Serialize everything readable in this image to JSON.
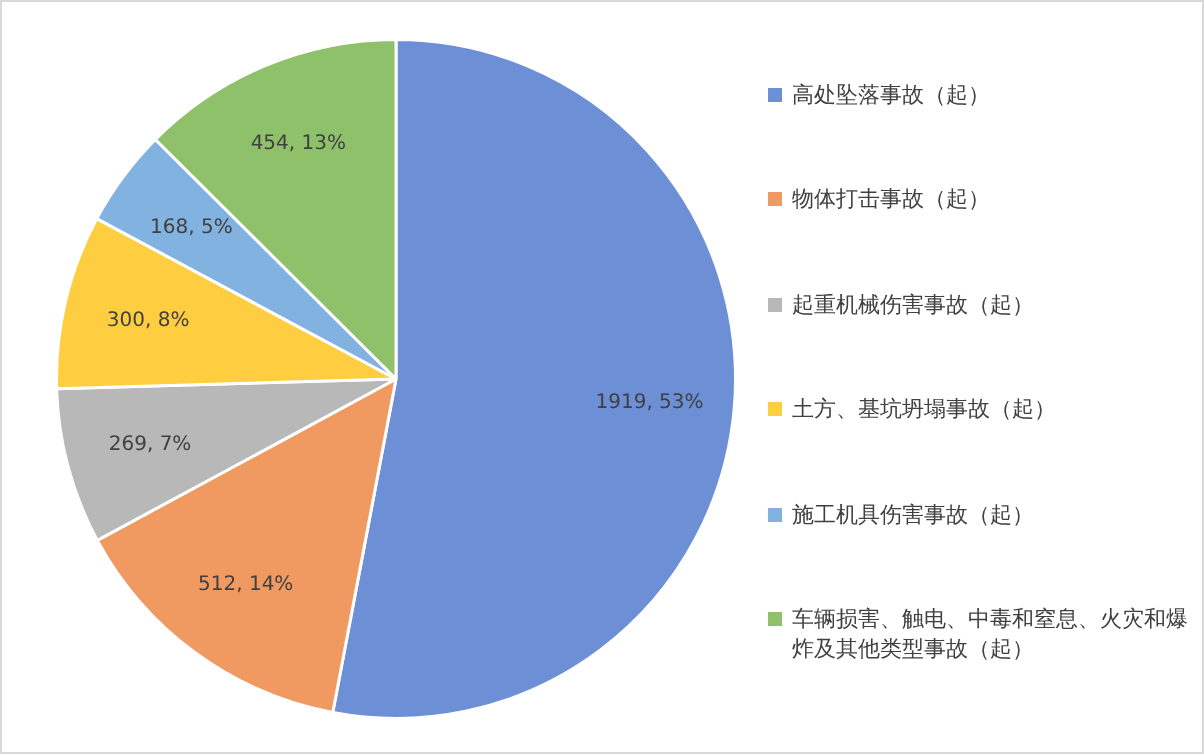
{
  "chart_data": {
    "type": "pie",
    "categories": [
      "高处坠落事故（起）",
      "物体打击事故（起）",
      "起重机械伤害事故（起）",
      "土方、基坑坍塌事故（起）",
      "施工机具伤害事故（起）",
      "车辆损害、触电、中毒和窒息、火灾和爆炸及其他类型事故（起）"
    ],
    "values": [
      1919,
      512,
      269,
      300,
      168,
      454
    ],
    "colors": [
      "#6d8fd6",
      "#f09a62",
      "#b8b8b8",
      "#ffcd40",
      "#82b2e0",
      "#8fc06a"
    ],
    "value_labels": [
      "1919, 53%",
      "512, 14%",
      "269, 7%",
      "300, 8%",
      "168, 5%",
      "454, 13%"
    ],
    "legend": "right"
  }
}
